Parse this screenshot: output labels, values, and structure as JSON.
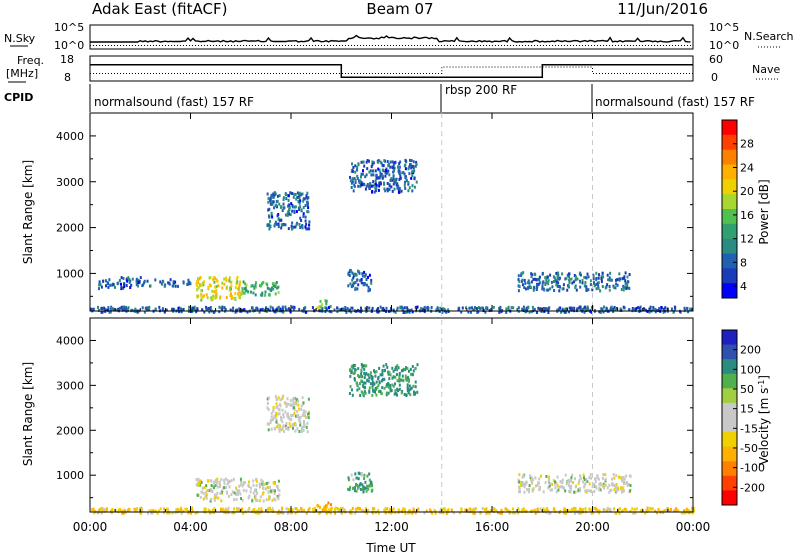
{
  "header": {
    "station": "Adak East (fitACF)",
    "beam": "Beam 07",
    "date": "11/Jun/2016"
  },
  "top_panels": {
    "nsky_label": "N.Sky",
    "nsky_top_tick": "10^5",
    "nsky_bottom_tick": "10^0",
    "nsearch_label": "N.Search",
    "nsearch_top_tick": "10^5",
    "nsearch_bottom_tick": "10^0",
    "freq_label_line1": "Freq.",
    "freq_label_line2": "[MHz]",
    "freq_top_tick": "18",
    "freq_bottom_tick": "8",
    "nave_label": "Nave",
    "nave_top_tick": "60",
    "nave_bottom_tick": "0",
    "cpid_label": "CPID",
    "cpid_segments": [
      {
        "text": "normalsound (fast) 157 RF",
        "start_hour": 0
      },
      {
        "text": "rbsp 200 RF",
        "start_hour": 14
      },
      {
        "text": "normalsound (fast) 157 RF",
        "start_hour": 20
      }
    ]
  },
  "x_axis": {
    "label": "Time UT",
    "ticks": [
      "00:00",
      "04:00",
      "08:00",
      "12:00",
      "16:00",
      "20:00",
      "00:00"
    ],
    "tick_hours": [
      0,
      4,
      8,
      12,
      16,
      20,
      24
    ]
  },
  "power_panel": {
    "ylabel": "Slant Range [km]",
    "yticks": [
      "4000",
      "3000",
      "2000",
      "1000"
    ],
    "colorbar_label": "Power [dB]",
    "colorbar_ticks": [
      "28",
      "24",
      "20",
      "16",
      "12",
      "8",
      "4"
    ],
    "colorbar_colors": [
      "#ff0000",
      "#ff4000",
      "#ff8000",
      "#ffb000",
      "#f0d000",
      "#a8d830",
      "#50c050",
      "#30a070",
      "#2a8c80",
      "#2060b0",
      "#1a3cb8",
      "#0000ff"
    ]
  },
  "velocity_panel": {
    "ylabel": "Slant Range [km]",
    "yticks": [
      "4000",
      "3000",
      "2000",
      "1000"
    ],
    "colorbar_label": "Velocity [m s^-1]",
    "colorbar_ticks": [
      "200",
      "100",
      "50",
      "15",
      "-15",
      "-50",
      "-100",
      "-200"
    ],
    "colorbar_colors": [
      "#2020c0",
      "#3050b0",
      "#2a8c80",
      "#50b050",
      "#a0d040",
      "#c8c8c8",
      "#c8c8c8",
      "#f0d000",
      "#ffb000",
      "#ff8000",
      "#ff4000",
      "#ff0000"
    ]
  },
  "chart_data": {
    "type": "heatmap",
    "title": "Adak East (fitACF) Beam 07 11/Jun/2016",
    "xlabel": "Time UT",
    "ylabel": "Slant Range [km]",
    "xlim_hours": [
      0,
      24
    ],
    "ylim_km": [
      180,
      4500
    ],
    "grid": false,
    "power_scale_db": [
      0,
      30
    ],
    "velocity_scale_ms": [
      -250,
      250
    ],
    "mode_boundaries_hours": [
      14,
      20
    ],
    "frequency_mhz": [
      {
        "start_hour": 0,
        "end_hour": 10,
        "value": 14.5
      },
      {
        "start_hour": 10,
        "end_hour": 18,
        "value": 9.5
      },
      {
        "start_hour": 18,
        "end_hour": 24,
        "value": 14.5
      }
    ],
    "power_echo_regions": [
      {
        "hours": [
          0.3,
          2.0
        ],
        "range_km": [
          700,
          950
        ],
        "power_db": 6
      },
      {
        "hours": [
          2.0,
          4.0
        ],
        "range_km": [
          750,
          900
        ],
        "power_db": 5
      },
      {
        "hours": [
          4.2,
          6.0
        ],
        "range_km": [
          450,
          950
        ],
        "power_db": 18
      },
      {
        "hours": [
          6.0,
          7.5
        ],
        "range_km": [
          550,
          850
        ],
        "power_db": 12
      },
      {
        "hours": [
          7.0,
          8.7
        ],
        "range_km": [
          2000,
          2800
        ],
        "power_db": 6
      },
      {
        "hours": [
          9.0,
          9.6
        ],
        "range_km": [
          250,
          450
        ],
        "power_db": 14
      },
      {
        "hours": [
          10.3,
          13.0
        ],
        "range_km": [
          2800,
          3500
        ],
        "power_db": 6
      },
      {
        "hours": [
          10.2,
          11.2
        ],
        "range_km": [
          650,
          1100
        ],
        "power_db": 6
      },
      {
        "hours": [
          17.0,
          21.5
        ],
        "range_km": [
          650,
          1050
        ],
        "power_db": 7
      },
      {
        "hours": [
          0.0,
          24.0
        ],
        "range_km": [
          180,
          300
        ],
        "power_db": 6
      }
    ],
    "velocity_echo_regions": [
      {
        "hours": [
          4.2,
          7.5
        ],
        "range_km": [
          450,
          950
        ],
        "velocity_ms": 0
      },
      {
        "hours": [
          7.0,
          8.7
        ],
        "range_km": [
          2000,
          2800
        ],
        "velocity_ms": 0
      },
      {
        "hours": [
          9.0,
          9.6
        ],
        "range_km": [
          250,
          450
        ],
        "velocity_ms": -60
      },
      {
        "hours": [
          10.3,
          13.0
        ],
        "range_km": [
          2800,
          3500
        ],
        "velocity_ms": 40
      },
      {
        "hours": [
          10.2,
          11.2
        ],
        "range_km": [
          650,
          1100
        ],
        "velocity_ms": 30
      },
      {
        "hours": [
          17.0,
          21.5
        ],
        "range_km": [
          650,
          1050
        ],
        "velocity_ms": 0
      },
      {
        "hours": [
          0.0,
          24.0
        ],
        "range_km": [
          180,
          300
        ],
        "velocity_ms": -30
      }
    ]
  }
}
